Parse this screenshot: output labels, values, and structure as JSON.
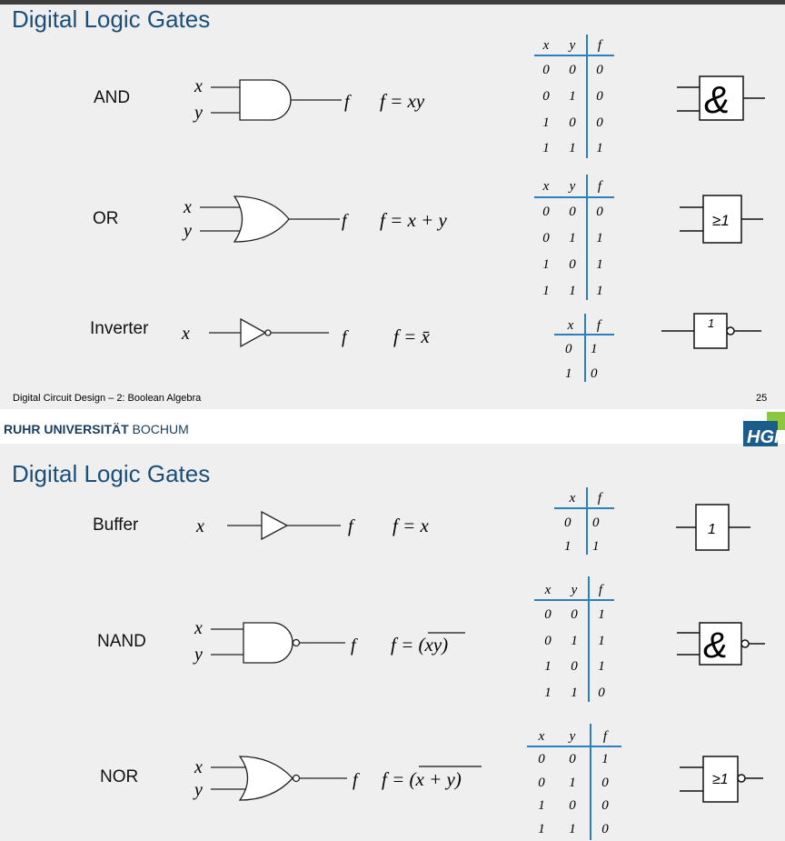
{
  "slide1": {
    "title": "Digital Logic Gates",
    "footer_left": "Digital Circuit Design – 2: Boolean Algebra",
    "page_number": "25",
    "gates": [
      {
        "name": "AND",
        "equation": "f = xy",
        "symbol": "&",
        "table": {
          "headers": [
            "x",
            "y",
            "f"
          ],
          "rows": [
            [
              "0",
              "0",
              "0"
            ],
            [
              "0",
              "1",
              "0"
            ],
            [
              "1",
              "0",
              "0"
            ],
            [
              "1",
              "1",
              "1"
            ]
          ]
        }
      },
      {
        "name": "OR",
        "equation": "f = x + y",
        "symbol": "≥1",
        "table": {
          "headers": [
            "x",
            "y",
            "f"
          ],
          "rows": [
            [
              "0",
              "0",
              "0"
            ],
            [
              "0",
              "1",
              "1"
            ],
            [
              "1",
              "0",
              "1"
            ],
            [
              "1",
              "1",
              "1"
            ]
          ]
        }
      },
      {
        "name": "Inverter",
        "equation": "f = x̄",
        "symbol": "1",
        "table": {
          "headers": [
            "x",
            "f"
          ],
          "rows": [
            [
              "0",
              "1"
            ],
            [
              "1",
              "0"
            ]
          ]
        }
      }
    ]
  },
  "slide2": {
    "university": {
      "bold": "RUHR UNIVERSITÄT",
      "regular": " BOCHUM"
    },
    "logo_text": "HGI",
    "title": "Digital Logic Gates",
    "gates": [
      {
        "name": "Buffer",
        "equation": "f = x",
        "symbol": "1",
        "table": {
          "headers": [
            "x",
            "f"
          ],
          "rows": [
            [
              "0",
              "0"
            ],
            [
              "1",
              "1"
            ]
          ]
        }
      },
      {
        "name": "NAND",
        "equation": "f = (xy)",
        "symbol": "&",
        "table": {
          "headers": [
            "x",
            "y",
            "f"
          ],
          "rows": [
            [
              "0",
              "0",
              "1"
            ],
            [
              "0",
              "1",
              "1"
            ],
            [
              "1",
              "0",
              "1"
            ],
            [
              "1",
              "1",
              "0"
            ]
          ]
        }
      },
      {
        "name": "NOR",
        "equation": "f = (x + y)",
        "symbol": "≥1",
        "table": {
          "headers": [
            "x",
            "y",
            "f"
          ],
          "rows": [
            [
              "0",
              "0",
              "1"
            ],
            [
              "0",
              "1",
              "0"
            ],
            [
              "1",
              "0",
              "0"
            ],
            [
              "1",
              "1",
              "0"
            ]
          ]
        }
      }
    ]
  },
  "var_x": "x",
  "var_y": "y",
  "var_f": "f",
  "colors": {
    "title": "#1a4f7a",
    "table_rule": "#2a7fc0",
    "background": "#efefef",
    "logo_green": "#8dc63f",
    "logo_blue": "#1a5c8a"
  }
}
